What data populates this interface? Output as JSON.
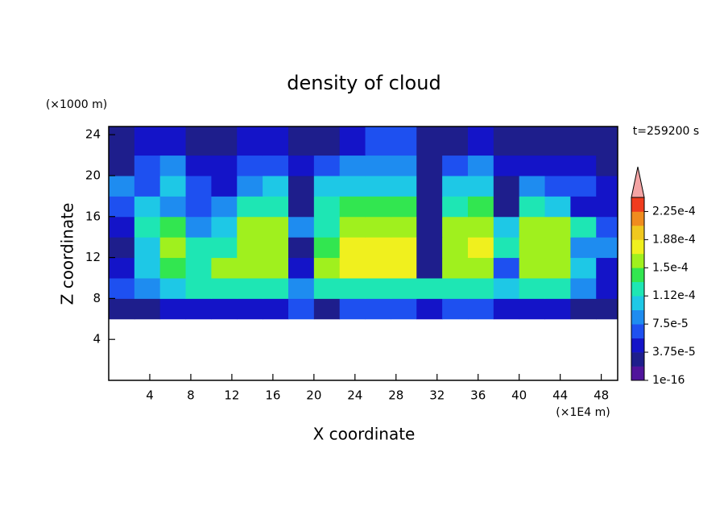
{
  "chart_data": {
    "type": "contour",
    "title": "density of cloud",
    "x_label": "X coordinate",
    "x_unit": "(×1E4 m)",
    "y_label": "Z coordinate",
    "y_unit": "(×1000 m)",
    "annotation": "t=259200 s",
    "xlim": [
      0,
      49.6
    ],
    "ylim": [
      0,
      24.8
    ],
    "xticks": [
      4,
      8,
      12,
      16,
      20,
      24,
      28,
      32,
      36,
      40,
      44,
      48
    ],
    "yticks": [
      4,
      8,
      12,
      16,
      20,
      24
    ],
    "x": [
      1.25,
      3.75,
      6.25,
      8.75,
      11.25,
      13.75,
      16.25,
      18.75,
      21.25,
      23.75,
      26.25,
      28.75,
      31.25,
      33.75,
      36.25,
      38.75,
      41.25,
      43.75,
      46.25,
      48.75
    ],
    "z": [
      1,
      3,
      5,
      7,
      9,
      11,
      13,
      15,
      17,
      19,
      21,
      23
    ],
    "values": [
      [
        0,
        0,
        0,
        0,
        0,
        0,
        0,
        0,
        0,
        0,
        0,
        0,
        0,
        0,
        0,
        0,
        0,
        0,
        0,
        0
      ],
      [
        0,
        0,
        0,
        0,
        0,
        0,
        0,
        0,
        0,
        0,
        0,
        0,
        0,
        0,
        0,
        0,
        0,
        0,
        0,
        0
      ],
      [
        0,
        0,
        0,
        0,
        0,
        0,
        0,
        0,
        0,
        0,
        0,
        0,
        0,
        0,
        0,
        0,
        0,
        0,
        0,
        0
      ],
      [
        3e-05,
        3e-05,
        4e-05,
        4e-05,
        5e-05,
        5e-05,
        5e-05,
        6e-05,
        3e-05,
        6e-05,
        6e-05,
        6e-05,
        5e-05,
        6e-05,
        6e-05,
        5e-05,
        5e-05,
        5e-05,
        3e-05,
        3e-05
      ],
      [
        6e-05,
        9e-05,
        0.00011,
        0.00012,
        0.00013,
        0.00013,
        0.00012,
        8e-05,
        0.00012,
        0.00013,
        0.00013,
        0.00013,
        0.00012,
        0.00013,
        0.00013,
        0.00011,
        0.00012,
        0.00012,
        8e-05,
        5e-05
      ],
      [
        4e-05,
        0.0001,
        0.00014,
        0.00013,
        0.00015,
        0.00016,
        0.00015,
        5e-05,
        0.00016,
        0.00017,
        0.00017,
        0.00017,
        3e-05,
        0.00016,
        0.00016,
        6e-05,
        0.00016,
        0.00016,
        0.0001,
        5e-05
      ],
      [
        3e-05,
        0.00011,
        0.00015,
        0.00012,
        0.00013,
        0.00016,
        0.00016,
        3e-05,
        0.00014,
        0.00017,
        0.00017,
        0.00017,
        3e-05,
        0.00016,
        0.00017,
        0.00012,
        0.00016,
        0.00016,
        9e-05,
        8e-05
      ],
      [
        4e-05,
        0.00012,
        0.00014,
        8e-05,
        0.0001,
        0.00016,
        0.00015,
        8e-05,
        0.00013,
        0.00016,
        0.00016,
        0.00016,
        3e-05,
        0.00015,
        0.00016,
        0.0001,
        0.00015,
        0.00015,
        0.00012,
        6e-05
      ],
      [
        6e-05,
        0.0001,
        8e-05,
        6e-05,
        9e-05,
        0.00012,
        0.00013,
        3e-05,
        0.00012,
        0.00014,
        0.00014,
        0.00014,
        3e-05,
        0.00013,
        0.00014,
        3e-05,
        0.00013,
        0.00011,
        4e-05,
        5e-05
      ],
      [
        8e-05,
        6e-05,
        0.0001,
        7e-05,
        5e-05,
        9e-05,
        0.0001,
        3e-05,
        0.0001,
        0.00011,
        0.00011,
        0.00011,
        3e-05,
        0.0001,
        0.00011,
        3e-05,
        8e-05,
        7e-05,
        6e-05,
        4e-05
      ],
      [
        3e-05,
        6e-05,
        8e-05,
        5e-05,
        4e-05,
        6e-05,
        7e-05,
        5e-05,
        6e-05,
        8e-05,
        9e-05,
        9e-05,
        3e-05,
        7e-05,
        9e-05,
        4e-05,
        4e-05,
        5e-05,
        5e-05,
        3e-05
      ],
      [
        2e-05,
        4e-05,
        5e-05,
        3e-05,
        2e-05,
        4e-05,
        4e-05,
        2e-05,
        3e-05,
        5e-05,
        7e-05,
        6e-05,
        2e-05,
        3e-05,
        4e-05,
        3e-05,
        2e-05,
        3e-05,
        2e-05,
        2e-05
      ]
    ],
    "levels": [
      1e-16,
      1.875e-05,
      3.75e-05,
      5.625e-05,
      7.5e-05,
      9.375e-05,
      0.0001125,
      0.00013125,
      0.00015,
      0.00016875,
      0.0001875,
      0.00020625,
      0.000225,
      0.00024375
    ],
    "colors": [
      "#50149b",
      "#1e1e8c",
      "#1414c8",
      "#1e50f0",
      "#1e8cf0",
      "#1ec8e6",
      "#1ee6b4",
      "#32e650",
      "#a0f01e",
      "#f0f01e",
      "#f0c81e",
      "#f08c1e",
      "#f03c1e"
    ],
    "under_color": "#ffffff",
    "over_color": "#f4a4a4",
    "colorbar_ticks": [
      {
        "value": 1e-16,
        "label": "1e-16"
      },
      {
        "value": 3.75e-05,
        "label": "3.75e-5"
      },
      {
        "value": 7.5e-05,
        "label": "7.5e-5"
      },
      {
        "value": 0.0001125,
        "label": "1.12e-4"
      },
      {
        "value": 0.00015,
        "label": "1.5e-4"
      },
      {
        "value": 0.0001875,
        "label": "1.88e-4"
      },
      {
        "value": 0.000225,
        "label": "2.25e-4"
      }
    ]
  }
}
